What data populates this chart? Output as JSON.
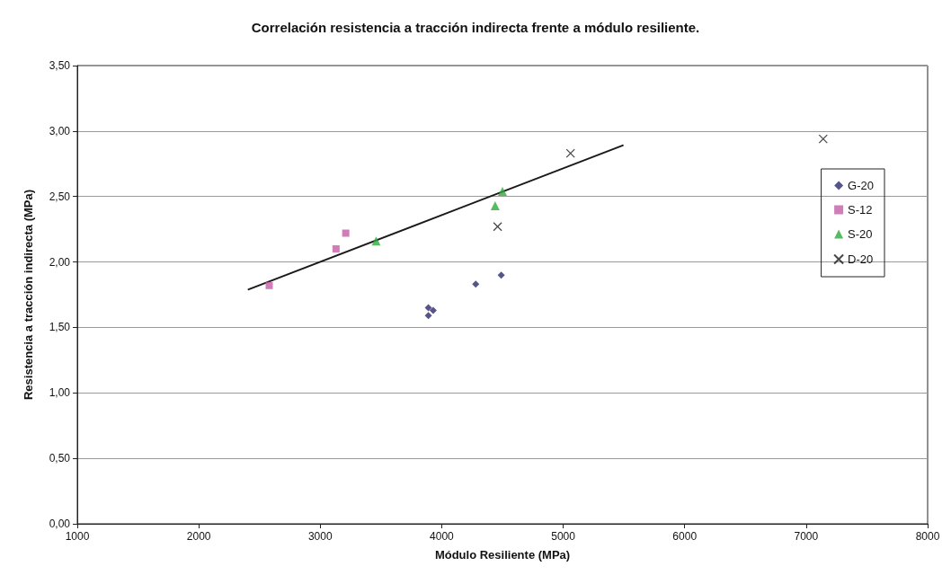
{
  "chart_data": {
    "type": "scatter",
    "title": "Correlación resistencia a tracción indirecta frente a módulo resiliente.",
    "xlabel": "Módulo Resiliente (MPa)",
    "ylabel": "Resistencia a tracción indirecta (MPa)",
    "xlim": [
      1000,
      8000
    ],
    "xticks": [
      1000,
      2000,
      3000,
      4000,
      5000,
      6000,
      7000,
      8000
    ],
    "ylim": [
      0,
      3.5
    ],
    "yticks": [
      {
        "value": 0,
        "label": "0,00"
      },
      {
        "value": 0.5,
        "label": "0,50"
      },
      {
        "value": 1,
        "label": "1,00"
      },
      {
        "value": 1.5,
        "label": "1,50"
      },
      {
        "value": 2,
        "label": "2,00"
      },
      {
        "value": 2.5,
        "label": "2,50"
      },
      {
        "value": 3,
        "label": "3,00"
      },
      {
        "value": 3.5,
        "label": "3,50"
      }
    ],
    "grid": "y",
    "legend": "right",
    "series": [
      {
        "name": "G-20",
        "color": "#2b2a6b",
        "marker": "diamond",
        "x": [
          3890,
          3890,
          3930,
          4280,
          4490
        ],
        "values": [
          1.59,
          1.65,
          1.63,
          1.83,
          1.9
        ]
      },
      {
        "name": "S-12",
        "color": "#c45ca8",
        "marker": "square",
        "x": [
          2580,
          3130,
          3210
        ],
        "values": [
          1.82,
          2.1,
          2.22
        ]
      },
      {
        "name": "S-20",
        "color": "#2eaa3c",
        "marker": "triangle",
        "x": [
          3460,
          4440,
          4500
        ],
        "values": [
          2.16,
          2.43,
          2.54
        ]
      },
      {
        "name": "D-20",
        "color": "#1a1a1a",
        "marker": "cross",
        "x": [
          4460,
          5060,
          7140
        ],
        "values": [
          2.27,
          2.83,
          2.94
        ]
      },
      {
        "type": "line",
        "color": "#1a1a1a",
        "marker": "none",
        "x": [
          2410,
          5490
        ],
        "values": [
          1.79,
          2.89
        ]
      }
    ]
  }
}
